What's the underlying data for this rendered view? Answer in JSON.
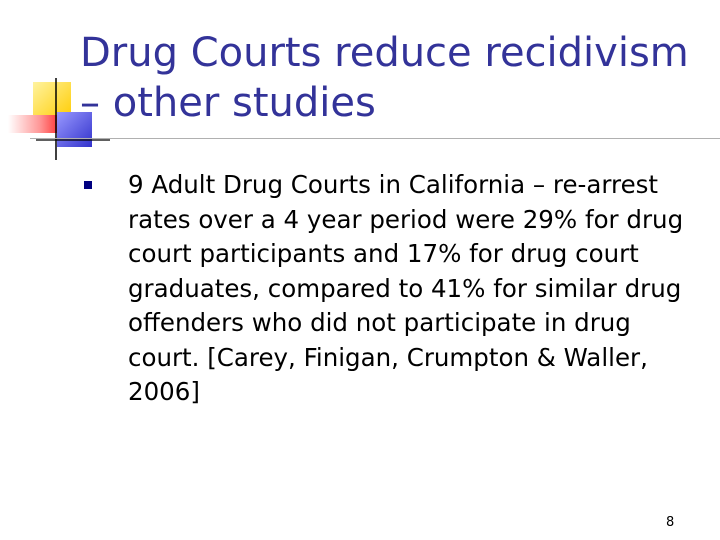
{
  "slide": {
    "title": "Drug Courts reduce recidivism – other studies",
    "bullets": [
      {
        "text": "9 Adult Drug Courts in California – re-arrest rates over a 4 year period were 29% for drug court participants and 17% for drug court graduates, compared to 41% for similar drug offenders who did not participate in drug court. [Carey, Finigan, Crumpton & Waller, 2006]"
      }
    ],
    "page_number": "8"
  },
  "colors": {
    "title": "#333399",
    "bullet_marker": "#000080",
    "deco_yellow": "#ffcc00",
    "deco_red": "#ff3333",
    "deco_blue": "#3333cc",
    "rule": "#b0b0b0"
  },
  "icons": {
    "bullet": "square-bullet-icon",
    "decoration": "corner-squares-decoration"
  }
}
